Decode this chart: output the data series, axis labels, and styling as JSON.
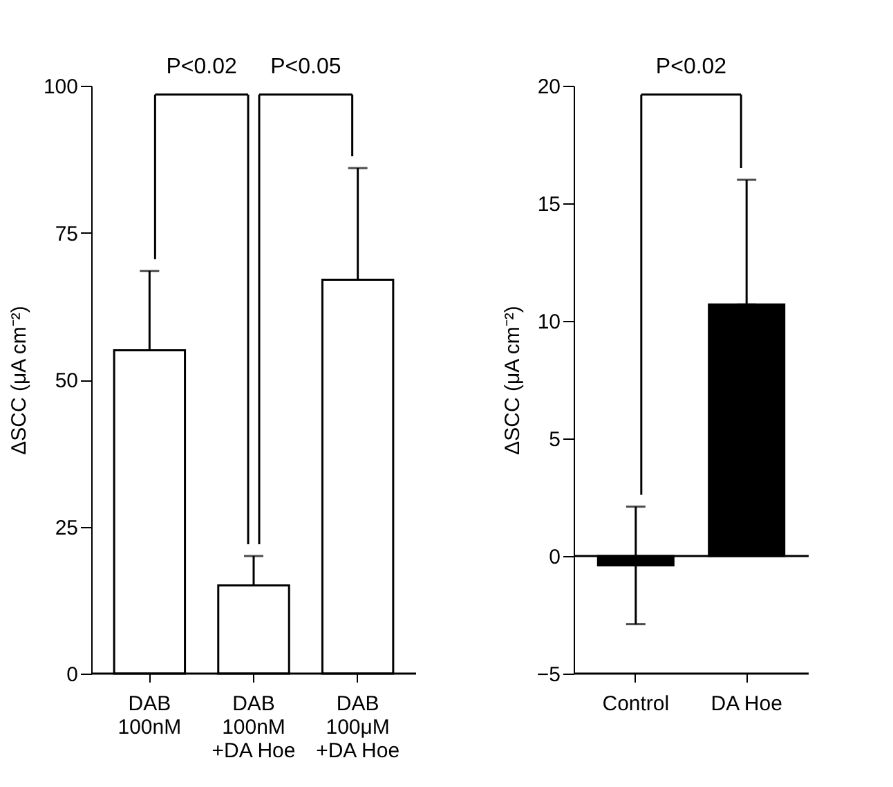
{
  "chart_data": [
    {
      "type": "bar",
      "ylabel": "ΔSCC (μA cm⁻²)",
      "categories": [
        "DAB\n100nM",
        "DAB\n100nM\n+DA Hoe",
        "DAB\n100μM\n+DA Hoe"
      ],
      "series": [
        {
          "color": "#ffffff",
          "values": [
            55,
            15,
            67
          ],
          "errors": [
            [
              55,
              68.5
            ],
            [
              15,
              20
            ],
            [
              67,
              86
            ]
          ]
        }
      ],
      "ylim": [
        0,
        100
      ],
      "yticks": [
        0,
        25,
        50,
        75,
        100
      ],
      "grid": false,
      "legend": false,
      "annotations": [
        "P<0.02",
        "P<0.05"
      ]
    },
    {
      "type": "bar",
      "ylabel": "ΔSCC (μA cm⁻²)",
      "categories": [
        "Control",
        "DA Hoe"
      ],
      "series": [
        {
          "color": "#000000",
          "values": [
            -0.4,
            10.7
          ],
          "errors": [
            2.5,
            [
              10.7,
              16.0
            ]
          ]
        }
      ],
      "ref_lines": [
        {
          "axis": "y",
          "value": 0,
          "color": "#000000",
          "line_style": "solid"
        }
      ],
      "ylim": [
        -5,
        20
      ],
      "yticks": [
        -5,
        0,
        5,
        10,
        15,
        20
      ],
      "grid": false,
      "legend": false,
      "annotations": [
        "P<0.02"
      ]
    }
  ]
}
